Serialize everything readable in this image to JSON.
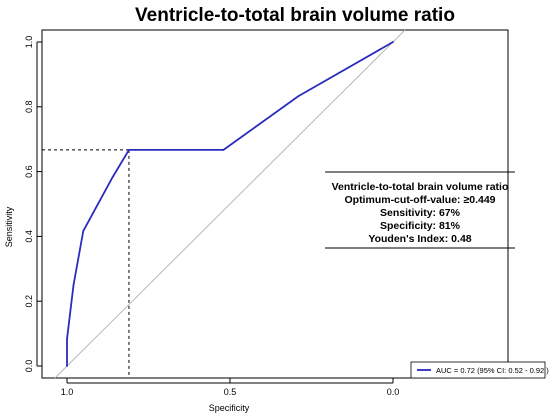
{
  "chart_data": {
    "type": "line",
    "title": "Ventricle-to-total brain volume ratio",
    "xlabel": "Specificity",
    "ylabel": "Sensitivity",
    "xlim": [
      1.0,
      0.0
    ],
    "ylim": [
      0.0,
      1.0
    ],
    "x_reversed": true,
    "x_ticks": [
      1.0,
      0.5,
      0.0
    ],
    "x_tick_labels": [
      "1.0",
      "0.5",
      "0.0"
    ],
    "y_ticks": [
      0.0,
      0.2,
      0.4,
      0.6,
      0.8,
      1.0
    ],
    "y_tick_labels": [
      "0.0",
      "0.2",
      "0.4",
      "0.6",
      "0.8",
      "1.0"
    ],
    "grid": false,
    "series": [
      {
        "name": "AUC = 0.72  (95% CI: 0.52 - 0.92 )",
        "color": "#2b2bbf",
        "points": [
          {
            "specificity": 1.0,
            "sensitivity": 0.0
          },
          {
            "specificity": 1.0,
            "sensitivity": 0.083
          },
          {
            "specificity": 0.98,
            "sensitivity": 0.25
          },
          {
            "specificity": 0.95,
            "sensitivity": 0.417
          },
          {
            "specificity": 0.86,
            "sensitivity": 0.583
          },
          {
            "specificity": 0.81,
            "sensitivity": 0.667
          },
          {
            "specificity": 0.52,
            "sensitivity": 0.667
          },
          {
            "specificity": 0.29,
            "sensitivity": 0.833
          },
          {
            "specificity": 0.0,
            "sensitivity": 1.0
          }
        ]
      }
    ],
    "reference_line": {
      "from": [
        1.0,
        0.0
      ],
      "to": [
        0.0,
        1.0
      ],
      "color": "#b8b8b8"
    },
    "optimum_point": {
      "specificity": 0.81,
      "sensitivity": 0.667
    },
    "annotation": {
      "lines": [
        "Ventricle-to-total brain volume ratio",
        "Optimum-cut-off-value: ≥0.449",
        "Sensitivity: 67%",
        "Specificity: 81%",
        "Youden's Index: 0.48"
      ]
    },
    "legend": {
      "position": "bottom-right",
      "entries": [
        "AUC = 0.72  (95% CI: 0.52 - 0.92 )"
      ]
    }
  }
}
